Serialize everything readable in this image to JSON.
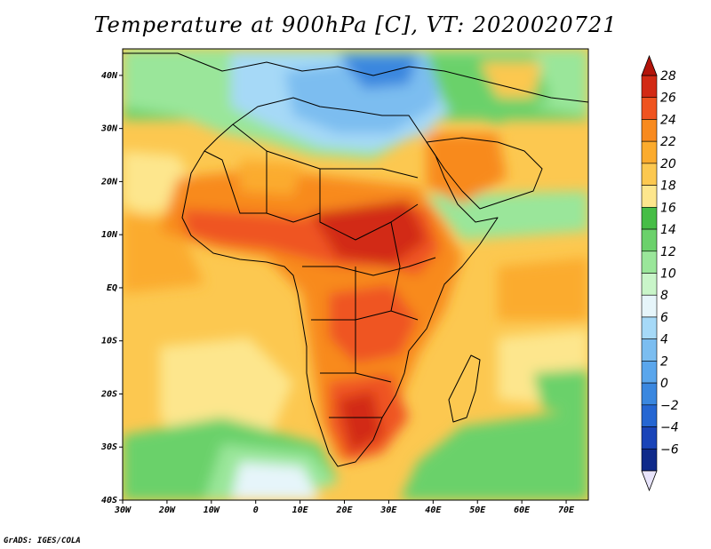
{
  "title": "Temperature at 900hPa [C], VT: 2020020721",
  "credit": "GrADS: IGES/COLA",
  "map": {
    "region": "Africa",
    "lon_range": [
      -30,
      75
    ],
    "lat_range": [
      -40,
      45
    ],
    "x_ticks": [
      "30W",
      "20W",
      "10W",
      "0",
      "10E",
      "20E",
      "30E",
      "40E",
      "50E",
      "60E",
      "70E"
    ],
    "y_ticks": [
      "40N",
      "30N",
      "20N",
      "10N",
      "EQ",
      "10S",
      "20S",
      "30S",
      "40S"
    ]
  },
  "colorbar": {
    "labels": [
      "28",
      "26",
      "24",
      "22",
      "20",
      "18",
      "16",
      "14",
      "12",
      "10",
      "8",
      "6",
      "4",
      "2",
      "0",
      "-2",
      "-4",
      "-6"
    ],
    "colors": [
      "#d22a15",
      "#ef5420",
      "#f88a1e",
      "#fbab2d",
      "#fcc850",
      "#fde68d",
      "#46bd46",
      "#6bd16b",
      "#9ae69a",
      "#c9f5c9",
      "#e6f5fa",
      "#a6d9f7",
      "#7bbdf0",
      "#5aa6ec",
      "#3a87df",
      "#2566d2",
      "#1a44b8",
      "#0f2a8a"
    ],
    "top_arrow_color": "#b3140a",
    "bottom_arrow_color": "#e8e4fb"
  }
}
